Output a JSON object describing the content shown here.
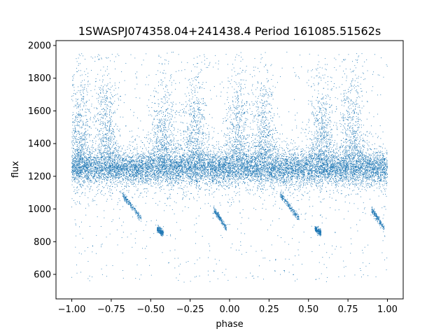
{
  "chart_data": {
    "type": "scatter",
    "title": "1SWASPJ074358.04+241438.4 Period 161085.51562s",
    "xlabel": "phase",
    "ylabel": "flux",
    "xlim": [
      -1.1,
      1.1
    ],
    "ylim": [
      450,
      2030
    ],
    "x_ticks": [
      -1.0,
      -0.75,
      -0.5,
      -0.25,
      0.0,
      0.25,
      0.5,
      0.75,
      1.0
    ],
    "x_tick_labels": [
      "−1.00",
      "−0.75",
      "−0.50",
      "−0.25",
      "0.00",
      "0.25",
      "0.50",
      "0.75",
      "1.00"
    ],
    "y_ticks": [
      600,
      800,
      1000,
      1200,
      1400,
      1600,
      1800,
      2000
    ],
    "y_tick_labels": [
      "600",
      "800",
      "1000",
      "1200",
      "1400",
      "1600",
      "1800",
      "2000"
    ],
    "grid": false,
    "legend": "none",
    "marker_color": "#1f77b4",
    "series": [
      {
        "points": "folded light curve, phase -1 to 1, dense band near flux 1250 with dips to ~880 and flares to ~1950",
        "baseline_flux": 1250,
        "scatter_range": [
          550,
          1960
        ],
        "dip_tracks": [
          {
            "phase_start": -0.68,
            "phase_end": -0.56,
            "flux_start": 1090,
            "flux_end": 940
          },
          {
            "phase_start": -0.46,
            "phase_end": -0.42,
            "flux_start": 880,
            "flux_end": 850
          },
          {
            "phase_start": -0.1,
            "phase_end": -0.02,
            "flux_start": 1000,
            "flux_end": 880
          },
          {
            "phase_start": 0.32,
            "phase_end": 0.44,
            "flux_start": 1090,
            "flux_end": 940
          },
          {
            "phase_start": 0.54,
            "phase_end": 0.58,
            "flux_start": 880,
            "flux_end": 850
          },
          {
            "phase_start": 0.9,
            "phase_end": 0.98,
            "flux_start": 1000,
            "flux_end": 880
          }
        ],
        "flare_centers": [
          -0.95,
          -0.78,
          -0.42,
          -0.22,
          0.05,
          0.22,
          0.58,
          0.78
        ]
      }
    ]
  }
}
